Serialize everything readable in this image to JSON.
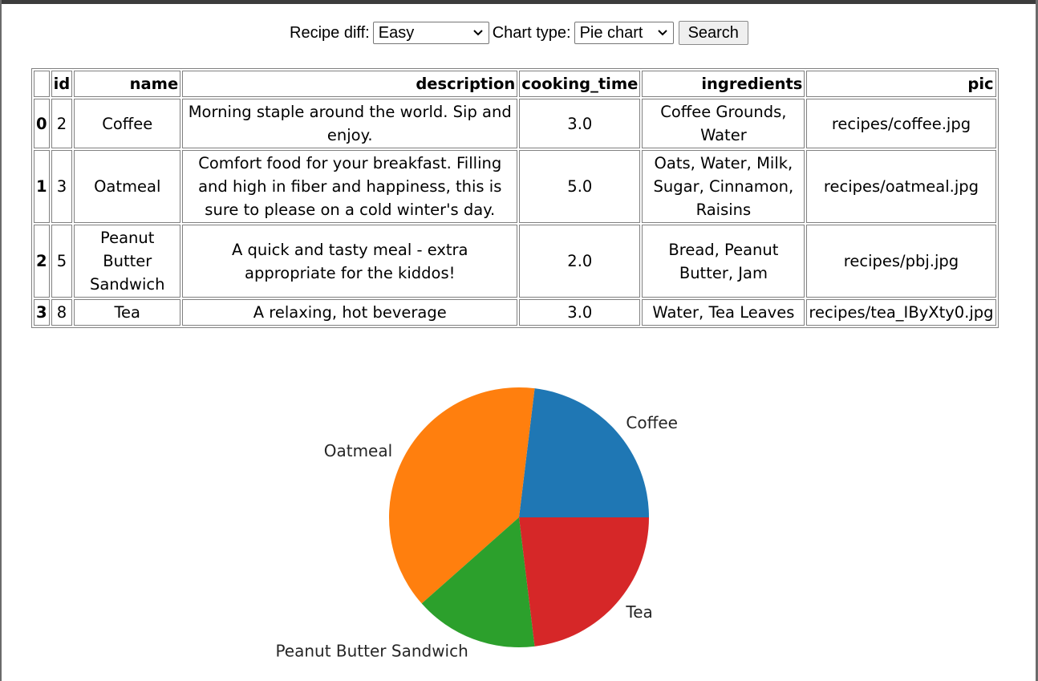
{
  "controls": {
    "recipe_diff_label": "Recipe diff:",
    "recipe_diff_value": "Easy",
    "chart_type_label": "Chart type:",
    "chart_type_value": "Pie chart",
    "search_label": "Search"
  },
  "table": {
    "headers": [
      "",
      "id",
      "name",
      "description",
      "cooking_time",
      "ingredients",
      "pic"
    ],
    "rows": [
      [
        "0",
        "2",
        "Coffee",
        "Morning staple around the world. Sip and enjoy.",
        "3.0",
        "Coffee Grounds, Water",
        "recipes/coffee.jpg"
      ],
      [
        "1",
        "3",
        "Oatmeal",
        "Comfort food for your breakfast. Filling and high in fiber and happiness, this is sure to please on a cold winter's day.",
        "5.0",
        "Oats, Water, Milk, Sugar, Cinnamon, Raisins",
        "recipes/oatmeal.jpg"
      ],
      [
        "2",
        "5",
        "Peanut Butter Sandwich",
        "A quick and tasty meal - extra appropriate for the kiddos!",
        "2.0",
        "Bread, Peanut Butter, Jam",
        "recipes/pbj.jpg"
      ],
      [
        "3",
        "8",
        "Tea",
        "A relaxing, hot beverage",
        "3.0",
        "Water, Tea Leaves",
        "recipes/tea_IByXty0.jpg"
      ]
    ]
  },
  "chart_data": {
    "type": "pie",
    "categories": [
      "Coffee",
      "Oatmeal",
      "Peanut Butter Sandwich",
      "Tea"
    ],
    "values": [
      3.0,
      5.0,
      2.0,
      3.0
    ],
    "colors": [
      "#1f77b4",
      "#ff7f0e",
      "#2ca02c",
      "#d62728"
    ]
  }
}
